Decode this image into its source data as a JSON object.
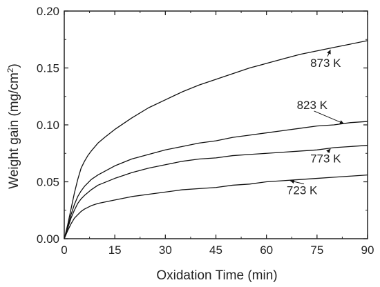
{
  "chart_data": {
    "type": "line",
    "xlabel": "Oxidation Time (min)",
    "ylabel_main": "Weight gain (mg/cm",
    "ylabel_sup": "2",
    "ylabel_end": ")",
    "xlim": [
      0,
      90
    ],
    "ylim": [
      0,
      0.2
    ],
    "x_ticks": [
      0,
      15,
      30,
      45,
      60,
      75,
      90
    ],
    "x_tick_labels": [
      "0",
      "15",
      "30",
      "45",
      "60",
      "75",
      "90"
    ],
    "y_ticks": [
      0,
      0.05,
      0.1,
      0.15,
      0.2
    ],
    "y_tick_labels": [
      "0.00",
      "0.05",
      "0.10",
      "0.15",
      "0.20"
    ],
    "grid": false,
    "series": [
      {
        "name": "873 K",
        "x": [
          0,
          1,
          2,
          3,
          4,
          5,
          6,
          7,
          8,
          10,
          12,
          15,
          20,
          25,
          30,
          35,
          40,
          45,
          50,
          55,
          60,
          65,
          70,
          75,
          80,
          85,
          90
        ],
        "y": [
          0,
          0.012,
          0.026,
          0.04,
          0.052,
          0.062,
          0.068,
          0.073,
          0.077,
          0.084,
          0.089,
          0.096,
          0.106,
          0.115,
          0.122,
          0.129,
          0.135,
          0.14,
          0.145,
          0.15,
          0.154,
          0.158,
          0.162,
          0.165,
          0.168,
          0.171,
          0.174
        ]
      },
      {
        "name": "823 K",
        "x": [
          0,
          1,
          2,
          3,
          4,
          5,
          6,
          8,
          10,
          15,
          20,
          25,
          30,
          35,
          40,
          45,
          50,
          55,
          60,
          65,
          70,
          75,
          80,
          85,
          90
        ],
        "y": [
          0,
          0.01,
          0.021,
          0.03,
          0.037,
          0.042,
          0.046,
          0.052,
          0.056,
          0.064,
          0.07,
          0.074,
          0.078,
          0.081,
          0.084,
          0.086,
          0.089,
          0.091,
          0.093,
          0.095,
          0.097,
          0.099,
          0.1,
          0.102,
          0.103
        ]
      },
      {
        "name": "773 K",
        "x": [
          0,
          1,
          2,
          3,
          4,
          5,
          6,
          8,
          10,
          15,
          20,
          25,
          30,
          35,
          40,
          45,
          50,
          55,
          60,
          65,
          70,
          75,
          80,
          85,
          90
        ],
        "y": [
          0,
          0.009,
          0.018,
          0.025,
          0.031,
          0.035,
          0.038,
          0.043,
          0.047,
          0.053,
          0.058,
          0.062,
          0.065,
          0.068,
          0.07,
          0.071,
          0.073,
          0.074,
          0.075,
          0.076,
          0.077,
          0.078,
          0.08,
          0.081,
          0.082
        ]
      },
      {
        "name": "723 K",
        "x": [
          0,
          1,
          2,
          3,
          4,
          5,
          6,
          8,
          10,
          15,
          20,
          25,
          30,
          35,
          40,
          45,
          50,
          55,
          60,
          65,
          70,
          75,
          80,
          85,
          90
        ],
        "y": [
          0,
          0.007,
          0.013,
          0.018,
          0.021,
          0.024,
          0.026,
          0.029,
          0.031,
          0.034,
          0.037,
          0.039,
          0.041,
          0.043,
          0.044,
          0.045,
          0.047,
          0.048,
          0.05,
          0.051,
          0.052,
          0.053,
          0.054,
          0.055,
          0.056
        ]
      }
    ],
    "annotations": [
      {
        "text": "873 K",
        "label_x": 73,
        "label_y": 0.151,
        "arrow_x": 79,
        "arrow_y": 0.166
      },
      {
        "text": "823 K",
        "label_x": 69,
        "label_y": 0.114,
        "arrow_x": 83,
        "arrow_y": 0.101
      },
      {
        "text": "773 K",
        "label_x": 73,
        "label_y": 0.067,
        "arrow_x": 79,
        "arrow_y": 0.079
      },
      {
        "text": "723 K",
        "label_x": 66,
        "label_y": 0.039,
        "arrow_x": 67,
        "arrow_y": 0.051
      }
    ]
  }
}
